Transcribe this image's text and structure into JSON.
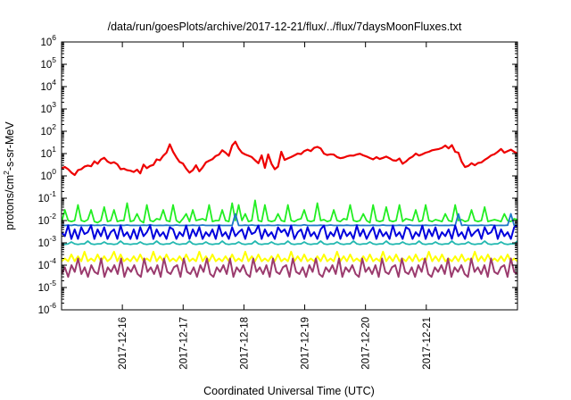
{
  "chart_data": {
    "type": "line",
    "title": "/data/run/goesPlots/archive/2017-12-21/flux/../flux/7daysMoonFluxes.txt",
    "xlabel": "Coordinated Universal Time (UTC)",
    "ylabel": {
      "base": "protons/cm",
      "sup": "2",
      "rest": "-s-sr-MeV"
    },
    "yscale": "log",
    "ylim_exp": [
      -6,
      6
    ],
    "yticks": [
      {
        "base": "10",
        "exp": "-6",
        "value": -6
      },
      {
        "base": "10",
        "exp": "-5",
        "value": -5
      },
      {
        "base": "10",
        "exp": "-4",
        "value": -4
      },
      {
        "base": "10",
        "exp": "-3",
        "value": -3
      },
      {
        "base": "10",
        "exp": "-2",
        "value": -2
      },
      {
        "base": "10",
        "exp": "-1",
        "value": -1
      },
      {
        "base": "10",
        "exp": "0",
        "value": 0
      },
      {
        "base": "10",
        "exp": "1",
        "value": 1
      },
      {
        "base": "10",
        "exp": "2",
        "value": 2
      },
      {
        "base": "10",
        "exp": "3",
        "value": 3
      },
      {
        "base": "10",
        "exp": "4",
        "value": 4
      },
      {
        "base": "10",
        "exp": "5",
        "value": 5
      },
      {
        "base": "10",
        "exp": "6",
        "value": 6
      }
    ],
    "x_unit": "day",
    "xlim": [
      0,
      7.5
    ],
    "xticks": [
      {
        "label": "2017-12-16",
        "value": 1
      },
      {
        "label": "2017-12-17",
        "value": 2
      },
      {
        "label": "2017-12-18",
        "value": 3
      },
      {
        "label": "2017-12-19",
        "value": 4
      },
      {
        "label": "2017-12-20",
        "value": 5
      },
      {
        "label": "2017-12-21",
        "value": 6
      }
    ],
    "grid": false,
    "legend": "none",
    "series": [
      {
        "color": "#ee0000",
        "stroke": 2.2,
        "values": [
          2.2,
          2.5,
          2.0,
          1.4,
          1.1,
          1.8,
          2.0,
          2.6,
          2.9,
          2.7,
          4.5,
          3.5,
          5.4,
          6.5,
          4.4,
          3.7,
          4.1,
          3.3,
          2.0,
          2.1,
          1.8,
          1.7,
          1.5,
          1.9,
          1.3,
          3.2,
          2.2,
          2.8,
          3.1,
          5.5,
          5.0,
          8.0,
          11.0,
          26.0,
          12.0,
          6.8,
          4.2,
          3.6,
          2.1,
          1.4,
          1.8,
          3.0,
          1.6,
          2.4,
          4.0,
          4.8,
          5.6,
          7.8,
          9.0,
          14.0,
          11.0,
          7.9,
          23.0,
          34.0,
          17.0,
          11.0,
          9.1,
          8.0,
          7.0,
          5.0,
          3.7,
          8.3,
          2.3,
          9.2,
          3.5,
          2.0,
          2.6,
          12.0,
          5.2,
          6.1,
          7.0,
          8.3,
          10.0,
          9.5,
          13.0,
          15.0,
          13.0,
          18.0,
          20.0,
          17.0,
          10.0,
          8.6,
          9.3,
          9.0,
          7.0,
          6.2,
          6.6,
          7.5,
          8.2,
          8.1,
          9.1,
          9.8,
          8.3,
          7.4,
          6.3,
          5.5,
          6.9,
          5.7,
          6.4,
          7.3,
          6.2,
          5.0,
          4.8,
          6.0,
          3.5,
          4.4,
          6.0,
          7.3,
          10.0,
          8.2,
          9.3,
          11.0,
          12.0,
          14.0,
          15.0,
          16.0,
          18.0,
          23.0,
          17.0,
          24.0,
          12.0,
          11.0,
          4.3,
          2.5,
          2.8,
          3.7,
          3.0,
          3.8,
          4.0,
          5.2,
          6.4,
          8.3,
          9.5,
          12.0,
          16.0,
          11.0,
          13.0,
          15.0,
          12.0,
          10.0
        ]
      },
      {
        "color": "#22ee22",
        "stroke": 1.8,
        "values": [
          0.008,
          0.03,
          0.01,
          0.009,
          0.01,
          0.05,
          0.01,
          0.009,
          0.011,
          0.03,
          0.009,
          0.008,
          0.01,
          0.04,
          0.009,
          0.01,
          0.03,
          0.009,
          0.01,
          0.01,
          0.06,
          0.009,
          0.01,
          0.02,
          0.01,
          0.008,
          0.05,
          0.01,
          0.009,
          0.012,
          0.011,
          0.03,
          0.01,
          0.009,
          0.05,
          0.01,
          0.008,
          0.012,
          0.02,
          0.009,
          0.03,
          0.01,
          0.011,
          0.012,
          0.01,
          0.05,
          0.009,
          0.01,
          0.01,
          0.03,
          0.01,
          0.009,
          0.06,
          0.01,
          0.05,
          0.01,
          0.02,
          0.009,
          0.01,
          0.08,
          0.01,
          0.009,
          0.05,
          0.01,
          0.009,
          0.01,
          0.02,
          0.01,
          0.009,
          0.05,
          0.01,
          0.009,
          0.011,
          0.012,
          0.03,
          0.01,
          0.009,
          0.01,
          0.06,
          0.01,
          0.011,
          0.009,
          0.01,
          0.03,
          0.01,
          0.009,
          0.012,
          0.011,
          0.05,
          0.01,
          0.009,
          0.01,
          0.02,
          0.01,
          0.008,
          0.05,
          0.01,
          0.009,
          0.01,
          0.04,
          0.01,
          0.009,
          0.01,
          0.05,
          0.009,
          0.012,
          0.011,
          0.01,
          0.03,
          0.009,
          0.01,
          0.05,
          0.01,
          0.009,
          0.011,
          0.01,
          0.009,
          0.02,
          0.01,
          0.009,
          0.05,
          0.01,
          0.011,
          0.009,
          0.01,
          0.03,
          0.01,
          0.009,
          0.01,
          0.04,
          0.009,
          0.01,
          0.011,
          0.01,
          0.009,
          0.02,
          0.01,
          0.009,
          0.012,
          0.011
        ]
      },
      {
        "color": "#1e78c8",
        "stroke": 1.8,
        "values": [
          0.006,
          0.006,
          0.0062,
          0.006,
          0.0065,
          0.006,
          0.0061,
          0.006,
          0.006,
          0.0063,
          0.006,
          0.0062,
          0.006,
          0.0064,
          0.006,
          0.0061,
          0.006,
          0.006,
          0.0062,
          0.006,
          0.0063,
          0.006,
          0.0061,
          0.006,
          0.006,
          0.0062,
          0.006,
          0.0064,
          0.006,
          0.006,
          0.0061,
          0.006,
          0.0062,
          0.006,
          0.006,
          0.0063,
          0.006,
          0.006,
          0.0061,
          0.006,
          0.0062,
          0.006,
          0.006,
          0.0063,
          0.006,
          0.006,
          0.0061,
          0.006,
          0.0062,
          0.006,
          0.006,
          0.006,
          0.006,
          0.02,
          0.006,
          0.006,
          0.0062,
          0.006,
          0.0063,
          0.006,
          0.006,
          0.0061,
          0.006,
          0.0062,
          0.006,
          0.006,
          0.0063,
          0.006,
          0.0061,
          0.006,
          0.006,
          0.0062,
          0.006,
          0.006,
          0.0064,
          0.006,
          0.006,
          0.0061,
          0.006,
          0.0062,
          0.006,
          0.006,
          0.0063,
          0.006,
          0.006,
          0.0061,
          0.006,
          0.0062,
          0.006,
          0.006,
          0.0063,
          0.006,
          0.0061,
          0.006,
          0.006,
          0.0062,
          0.006,
          0.006,
          0.0063,
          0.006,
          0.006,
          0.0061,
          0.006,
          0.0062,
          0.006,
          0.006,
          0.0063,
          0.006,
          0.006,
          0.0061,
          0.006,
          0.0062,
          0.006,
          0.006,
          0.0063,
          0.006,
          0.006,
          0.0061,
          0.006,
          0.0062,
          0.006,
          0.02,
          0.006,
          0.0063,
          0.006,
          0.006,
          0.0061,
          0.006,
          0.0062,
          0.006,
          0.006,
          0.0063,
          0.006,
          0.006,
          0.0061,
          0.006,
          0.0062,
          0.02,
          0.006,
          0.006
        ]
      },
      {
        "color": "#0000dd",
        "stroke": 2.0,
        "values": [
          0.003,
          0.002,
          0.006,
          0.0015,
          0.004,
          0.0015,
          0.005,
          0.0025,
          0.003,
          0.006,
          0.0015,
          0.004,
          0.002,
          0.005,
          0.0015,
          0.003,
          0.004,
          0.0015,
          0.006,
          0.002,
          0.003,
          0.0015,
          0.004,
          0.0015,
          0.005,
          0.002,
          0.003,
          0.006,
          0.0015,
          0.004,
          0.002,
          0.003,
          0.0015,
          0.005,
          0.004,
          0.0015,
          0.003,
          0.002,
          0.006,
          0.0015,
          0.004,
          0.002,
          0.005,
          0.0015,
          0.003,
          0.002,
          0.004,
          0.0015,
          0.006,
          0.002,
          0.003,
          0.0015,
          0.005,
          0.002,
          0.003,
          0.004,
          0.0015,
          0.005,
          0.0025,
          0.003,
          0.006,
          0.0015,
          0.004,
          0.002,
          0.003,
          0.0015,
          0.005,
          0.003,
          0.004,
          0.002,
          0.006,
          0.0015,
          0.003,
          0.004,
          0.0015,
          0.005,
          0.002,
          0.003,
          0.0015,
          0.004,
          0.006,
          0.0015,
          0.003,
          0.002,
          0.005,
          0.0015,
          0.004,
          0.002,
          0.003,
          0.0015,
          0.006,
          0.002,
          0.004,
          0.0015,
          0.003,
          0.005,
          0.0015,
          0.004,
          0.002,
          0.003,
          0.0015,
          0.006,
          0.002,
          0.003,
          0.0015,
          0.005,
          0.004,
          0.0015,
          0.003,
          0.002,
          0.006,
          0.0015,
          0.004,
          0.002,
          0.005,
          0.0015,
          0.003,
          0.002,
          0.004,
          0.0015,
          0.006,
          0.002,
          0.003,
          0.0015,
          0.005,
          0.002,
          0.003,
          0.004,
          0.0015,
          0.005,
          0.0025,
          0.003,
          0.006,
          0.0015,
          0.004,
          0.002,
          0.003,
          0.0015,
          0.005,
          0.006
        ]
      },
      {
        "color": "#22b8b0",
        "stroke": 1.8,
        "values": [
          0.0009,
          0.00085,
          0.0009,
          0.0011,
          0.0009,
          0.00085,
          0.0009,
          0.0009,
          0.0012,
          0.0009,
          0.00085,
          0.0009,
          0.0009,
          0.0011,
          0.0009,
          0.0009,
          0.00085,
          0.0009,
          0.0012,
          0.0009,
          0.0009,
          0.00085,
          0.0009,
          0.0009,
          0.0011,
          0.0009,
          0.00085,
          0.0009,
          0.0009,
          0.0012,
          0.0009,
          0.00085,
          0.0009,
          0.0009,
          0.0011,
          0.0009,
          0.00085,
          0.0009,
          0.0009,
          0.0012,
          0.0009,
          0.00085,
          0.0009,
          0.0009,
          0.0011,
          0.0009,
          0.00085,
          0.0009,
          0.0009,
          0.0012,
          0.0009,
          0.00085,
          0.0009,
          0.0009,
          0.0011,
          0.0009,
          0.00085,
          0.0009,
          0.0009,
          0.0012,
          0.0009,
          0.00085,
          0.0009,
          0.0009,
          0.0011,
          0.0009,
          0.00085,
          0.0009,
          0.0009,
          0.0012,
          0.0009,
          0.00085,
          0.0009,
          0.0009,
          0.0011,
          0.0009,
          0.00085,
          0.0009,
          0.0009,
          0.0012,
          0.0009,
          0.00085,
          0.0009,
          0.0009,
          0.0011,
          0.0009,
          0.00085,
          0.0009,
          0.0009,
          0.0012,
          0.0009,
          0.00085,
          0.0009,
          0.0009,
          0.0011,
          0.0009,
          0.00085,
          0.0009,
          0.0009,
          0.0012,
          0.0009,
          0.00085,
          0.0009,
          0.0009,
          0.0011,
          0.0009,
          0.00085,
          0.0009,
          0.0009,
          0.0012,
          0.0009,
          0.00085,
          0.0009,
          0.0009,
          0.0011,
          0.0009,
          0.00085,
          0.0009,
          0.0009,
          0.0012,
          0.0009,
          0.00085,
          0.0009,
          0.0009,
          0.0011,
          0.0009,
          0.00085,
          0.0009,
          0.0009,
          0.0012,
          0.0009,
          0.00085,
          0.0009,
          0.0009,
          0.0011,
          0.0009,
          0.00085,
          0.0009,
          0.0009,
          0.0012
        ]
      },
      {
        "color": "#ffff00",
        "stroke": 2.0,
        "values": [
          0.00015,
          0.0002,
          0.00015,
          0.0003,
          0.00015,
          0.00025,
          0.00015,
          0.0004,
          0.00015,
          0.0002,
          0.00015,
          0.0003,
          0.00015,
          0.00025,
          0.00015,
          0.0002,
          0.0004,
          0.00015,
          0.0003,
          0.00015,
          0.0002,
          0.00015,
          0.00025,
          0.00015,
          0.0003,
          0.00015,
          0.0002,
          0.00015,
          0.0004,
          0.00015,
          0.00025,
          0.00015,
          0.0003,
          0.00015,
          0.0002,
          0.00015,
          0.00025,
          0.00015,
          0.0003,
          0.00015,
          0.0002,
          0.00015,
          0.0004,
          0.00015,
          0.00025,
          0.00015,
          0.0003,
          0.00015,
          0.0002,
          0.00015,
          0.00025,
          0.00015,
          0.0003,
          0.00015,
          0.0002,
          0.00015,
          0.0004,
          0.00015,
          0.00025,
          0.00015,
          0.0003,
          0.00015,
          0.0002,
          0.00015,
          0.00025,
          0.00015,
          0.0003,
          0.00015,
          0.0002,
          0.00015,
          0.0004,
          0.00015,
          0.00025,
          0.00015,
          0.0003,
          0.00015,
          0.0002,
          0.00015,
          0.00025,
          0.00015,
          0.0003,
          0.00015,
          0.0002,
          0.00015,
          0.0004,
          0.00015,
          0.00025,
          0.00015,
          0.0003,
          0.00015,
          0.0002,
          0.00015,
          0.00025,
          0.00015,
          0.0003,
          0.00015,
          0.0002,
          0.00015,
          0.0004,
          0.00015,
          0.00025,
          0.00015,
          0.0003,
          0.00015,
          0.0002,
          0.00015,
          0.00025,
          0.00015,
          0.0003,
          0.00015,
          0.0002,
          0.00015,
          0.0004,
          0.00015,
          0.00025,
          0.00015,
          0.0003,
          0.00015,
          0.0002,
          0.00015,
          0.00025,
          0.00015,
          0.0003,
          0.00015,
          0.0002,
          0.00015,
          0.0004,
          0.00015,
          0.00025,
          0.00015,
          0.0003,
          0.00015,
          0.0002,
          0.00015,
          0.00025,
          0.00015,
          0.0003,
          0.00015,
          0.0002,
          0.00015
        ]
      },
      {
        "color": "#9b3b6e",
        "stroke": 2.0,
        "values": [
          4e-05,
          8e-05,
          3e-05,
          0.0001,
          5e-05,
          0.0002,
          4e-05,
          8e-05,
          3e-05,
          0.0001,
          5e-05,
          4e-05,
          0.0002,
          3e-05,
          8e-05,
          5e-05,
          0.0001,
          4e-05,
          0.0002,
          3e-05,
          8e-05,
          5e-05,
          0.0001,
          4e-05,
          3e-05,
          0.0002,
          5e-05,
          8e-05,
          4e-05,
          0.0001,
          3e-05,
          0.0002,
          5e-05,
          4e-05,
          8e-05,
          0.0001,
          3e-05,
          0.0002,
          5e-05,
          4e-05,
          8e-05,
          3e-05,
          0.0001,
          5e-05,
          0.0002,
          4e-05,
          3e-05,
          8e-05,
          5e-05,
          0.0001,
          4e-05,
          0.0002,
          3e-05,
          8e-05,
          5e-05,
          0.0001,
          4e-05,
          3e-05,
          0.0002,
          5e-05,
          8e-05,
          4e-05,
          0.0001,
          3e-05,
          0.0002,
          5e-05,
          4e-05,
          8e-05,
          0.0001,
          3e-05,
          0.0002,
          5e-05,
          4e-05,
          8e-05,
          3e-05,
          0.0001,
          5e-05,
          0.0002,
          4e-05,
          3e-05,
          8e-05,
          5e-05,
          0.0001,
          4e-05,
          0.0002,
          3e-05,
          8e-05,
          5e-05,
          0.0001,
          4e-05,
          3e-05,
          0.0002,
          5e-05,
          8e-05,
          4e-05,
          0.0001,
          3e-05,
          0.0002,
          5e-05,
          4e-05,
          8e-05,
          0.0001,
          3e-05,
          0.0002,
          5e-05,
          4e-05,
          8e-05,
          3e-05,
          0.0001,
          5e-05,
          0.0002,
          4e-05,
          3e-05,
          8e-05,
          5e-05,
          0.0001,
          4e-05,
          0.0002,
          3e-05,
          8e-05,
          5e-05,
          0.0001,
          4e-05,
          3e-05,
          0.0002,
          5e-05,
          8e-05,
          4e-05,
          0.0001,
          3e-05,
          0.0002,
          5e-05,
          4e-05,
          8e-05,
          0.0001,
          3e-05,
          0.0002,
          5e-05,
          4e-05
        ]
      }
    ]
  }
}
